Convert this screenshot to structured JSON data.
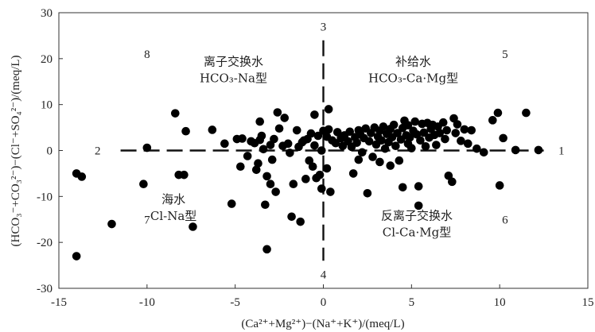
{
  "chart_data": {
    "type": "scatter",
    "xlabel": "(Ca²⁺+Mg²⁺)−(Na⁺+K⁺)/(meq/L)",
    "ylabel": "(HCO₃⁻+CO₃²⁻)−(Cl⁻+SO₄²⁻)/(meq/L)",
    "xlim": [
      -15,
      15
    ],
    "ylim": [
      -30,
      30
    ],
    "xticks": [
      "-15",
      "-10",
      "-5",
      "0",
      "5",
      "10",
      "15"
    ],
    "yticks": [
      "-30",
      "-20",
      "-10",
      "0",
      "10",
      "20",
      "30"
    ],
    "grid": false,
    "region_numbers": [
      {
        "label": "1",
        "x": 13.5,
        "y": 0
      },
      {
        "label": "2",
        "x": -12.8,
        "y": 0
      },
      {
        "label": "3",
        "x": 0,
        "y": 27
      },
      {
        "label": "4",
        "x": 0,
        "y": -27
      },
      {
        "label": "5",
        "x": 10.3,
        "y": 21
      },
      {
        "label": "6",
        "x": 10.3,
        "y": -15
      },
      {
        "label": "7",
        "x": -10.0,
        "y": -15
      },
      {
        "label": "8",
        "x": -10.0,
        "y": 21
      }
    ],
    "region_labels": [
      {
        "lines": [
          "离子交换水",
          "HCO₃-Na型"
        ],
        "x": -5.1,
        "y": 18.5
      },
      {
        "lines": [
          "补给水",
          "HCO₃-Ca·Mg型"
        ],
        "x": 5.1,
        "y": 18.5
      },
      {
        "lines": [
          "海水",
          "Cl-Na型"
        ],
        "x": -8.5,
        "y": -11.5
      },
      {
        "lines": [
          "反离子交换水",
          "Cl-Ca·Mg型"
        ],
        "x": 5.3,
        "y": -15
      }
    ],
    "points": [
      [
        -14.0,
        -23.0
      ],
      [
        -14.0,
        -5.0
      ],
      [
        -13.7,
        -5.7
      ],
      [
        -12.0,
        -16.0
      ],
      [
        -10.2,
        -7.3
      ],
      [
        -10.0,
        0.6
      ],
      [
        -8.4,
        8.1
      ],
      [
        -8.2,
        -5.3
      ],
      [
        -7.9,
        -5.3
      ],
      [
        -7.8,
        4.2
      ],
      [
        -7.4,
        -16.6
      ],
      [
        -6.3,
        4.5
      ],
      [
        -5.6,
        1.5
      ],
      [
        -5.2,
        -11.6
      ],
      [
        -4.9,
        2.5
      ],
      [
        -4.7,
        -3.5
      ],
      [
        -4.6,
        2.6
      ],
      [
        -4.3,
        -1.2
      ],
      [
        -4.1,
        2.0
      ],
      [
        -3.9,
        1.6
      ],
      [
        -3.8,
        -4.2
      ],
      [
        -3.7,
        -2.8
      ],
      [
        -3.6,
        2.3
      ],
      [
        -3.6,
        6.3
      ],
      [
        -3.5,
        3.2
      ],
      [
        -3.4,
        0.3
      ],
      [
        -3.2,
        -21.5
      ],
      [
        -3.3,
        -11.8
      ],
      [
        -3.2,
        -5.6
      ],
      [
        -3.0,
        -7.3
      ],
      [
        -3.0,
        1.2
      ],
      [
        -2.9,
        -2.0
      ],
      [
        -2.8,
        2.5
      ],
      [
        -2.7,
        -9.0
      ],
      [
        -2.6,
        8.3
      ],
      [
        -2.5,
        4.8
      ],
      [
        -2.3,
        1.0
      ],
      [
        -2.2,
        7.1
      ],
      [
        -2.0,
        1.5
      ],
      [
        -1.9,
        -0.5
      ],
      [
        -1.8,
        -14.4
      ],
      [
        -1.7,
        -7.3
      ],
      [
        -1.5,
        4.4
      ],
      [
        -1.4,
        0.8
      ],
      [
        -1.3,
        -15.5
      ],
      [
        -1.2,
        1.8
      ],
      [
        -1.1,
        2.2
      ],
      [
        -1.0,
        -6.2
      ],
      [
        -0.9,
        2.5
      ],
      [
        -0.8,
        -2.2
      ],
      [
        -0.7,
        3.7
      ],
      [
        -0.6,
        -3.5
      ],
      [
        -0.5,
        7.8
      ],
      [
        -0.5,
        1.1
      ],
      [
        -0.4,
        -6.0
      ],
      [
        -0.3,
        3.2
      ],
      [
        -0.2,
        -5.3
      ],
      [
        -0.1,
        -8.3
      ],
      [
        -0.1,
        0.0
      ],
      [
        0.0,
        4.3
      ],
      [
        0.2,
        3.0
      ],
      [
        0.2,
        -3.9
      ],
      [
        0.3,
        4.6
      ],
      [
        0.3,
        9.0
      ],
      [
        0.4,
        -9.0
      ],
      [
        0.5,
        2.2
      ],
      [
        0.7,
        1.6
      ],
      [
        0.8,
        4.0
      ],
      [
        1.0,
        2.7
      ],
      [
        1.1,
        1.0
      ],
      [
        1.2,
        3.3
      ],
      [
        1.4,
        2.0
      ],
      [
        1.5,
        4.1
      ],
      [
        1.6,
        0.8
      ],
      [
        1.7,
        -5.0
      ],
      [
        1.8,
        2.9
      ],
      [
        1.9,
        1.7
      ],
      [
        2.0,
        4.4
      ],
      [
        2.0,
        -2.0
      ],
      [
        2.1,
        3.5
      ],
      [
        2.2,
        -0.4
      ],
      [
        2.3,
        2.7
      ],
      [
        2.4,
        4.8
      ],
      [
        2.5,
        -9.3
      ],
      [
        2.6,
        2.0
      ],
      [
        2.7,
        3.8
      ],
      [
        2.8,
        -1.4
      ],
      [
        2.9,
        5.0
      ],
      [
        3.0,
        1.3
      ],
      [
        3.1,
        3.0
      ],
      [
        3.2,
        4.3
      ],
      [
        3.2,
        -2.5
      ],
      [
        3.3,
        2.2
      ],
      [
        3.4,
        5.2
      ],
      [
        3.5,
        0.4
      ],
      [
        3.6,
        3.6
      ],
      [
        3.7,
        1.8
      ],
      [
        3.8,
        -3.3
      ],
      [
        3.8,
        4.7
      ],
      [
        3.9,
        2.9
      ],
      [
        4.0,
        5.6
      ],
      [
        4.1,
        1.0
      ],
      [
        4.2,
        3.8
      ],
      [
        4.3,
        -2.2
      ],
      [
        4.4,
        2.4
      ],
      [
        4.5,
        4.9
      ],
      [
        4.5,
        -8.0
      ],
      [
        4.6,
        6.5
      ],
      [
        4.7,
        3.3
      ],
      [
        4.8,
        1.5
      ],
      [
        4.8,
        5.5
      ],
      [
        4.9,
        2.8
      ],
      [
        5.0,
        0.5
      ],
      [
        5.1,
        4.3
      ],
      [
        5.2,
        6.3
      ],
      [
        5.3,
        3.5
      ],
      [
        5.4,
        -12.0
      ],
      [
        5.4,
        -7.8
      ],
      [
        5.5,
        2.2
      ],
      [
        5.6,
        5.8
      ],
      [
        5.7,
        3.9
      ],
      [
        5.8,
        0.9
      ],
      [
        5.9,
        6.0
      ],
      [
        6.0,
        2.8
      ],
      [
        6.1,
        4.7
      ],
      [
        6.2,
        5.6
      ],
      [
        6.3,
        3.4
      ],
      [
        6.4,
        1.2
      ],
      [
        6.5,
        5.2
      ],
      [
        6.6,
        3.8
      ],
      [
        6.8,
        6.1
      ],
      [
        6.9,
        2.5
      ],
      [
        7.0,
        4.4
      ],
      [
        7.1,
        -5.5
      ],
      [
        7.3,
        -6.8
      ],
      [
        7.4,
        7.0
      ],
      [
        7.5,
        3.8
      ],
      [
        7.6,
        5.7
      ],
      [
        7.8,
        2.1
      ],
      [
        8.0,
        4.6
      ],
      [
        8.2,
        1.5
      ],
      [
        8.4,
        4.4
      ],
      [
        8.7,
        0.4
      ],
      [
        9.1,
        -0.4
      ],
      [
        9.6,
        6.6
      ],
      [
        9.9,
        8.2
      ],
      [
        10.0,
        -7.6
      ],
      [
        10.2,
        2.7
      ],
      [
        10.9,
        0.1
      ],
      [
        11.5,
        8.2
      ],
      [
        12.2,
        0.1
      ]
    ]
  }
}
